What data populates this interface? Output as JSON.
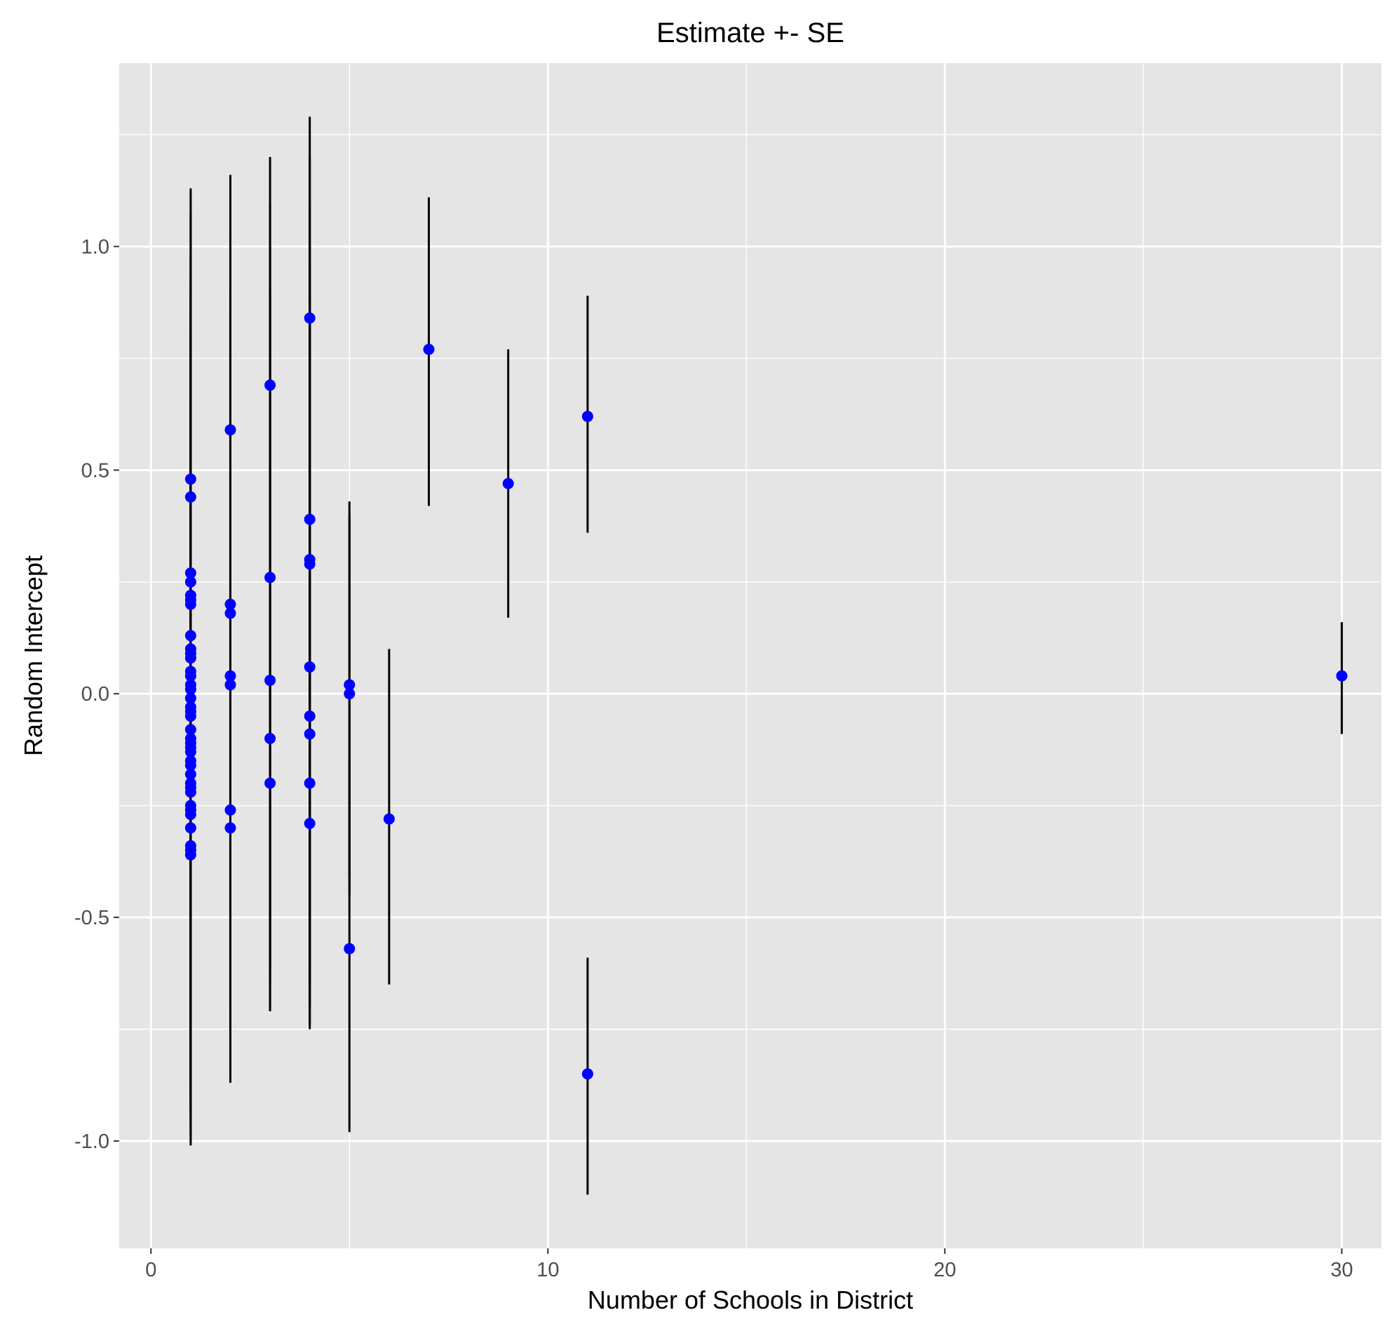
{
  "chart_data": {
    "type": "scatter",
    "title": "Estimate +- SE",
    "xlabel": "Number of Schools in District",
    "ylabel": "Random Intercept",
    "xlim": [
      -0.8,
      31.0
    ],
    "ylim": [
      -1.24,
      1.41
    ],
    "x_ticks": [
      0,
      10,
      20,
      30
    ],
    "x_tick_labels": [
      "0",
      "10",
      "20",
      "30"
    ],
    "x_minor_ticks": [
      5,
      15,
      25
    ],
    "y_ticks": [
      -1.0,
      -0.5,
      0.0,
      0.5,
      1.0
    ],
    "y_tick_labels": [
      "-1.0",
      "-0.5",
      "0.0",
      "0.5",
      "1.0"
    ],
    "y_minor_ticks": [
      -0.75,
      -0.25,
      0.25,
      0.75,
      1.25
    ],
    "grid": true,
    "legend": "none",
    "colors": {
      "panel_background": "#e5e5e5",
      "grid": "#ffffff",
      "point": "#0000ff",
      "errorbar": "#000000",
      "axis_text": "#4d4d4d",
      "title_text": "#000000"
    },
    "series": [
      {
        "points": [
          {
            "x": 1,
            "y": 0.48,
            "lo": -1.01,
            "hi": 1.13
          },
          {
            "x": 1,
            "y": 0.44,
            "lo": -0.93,
            "hi": 1.08
          },
          {
            "x": 1,
            "y": 0.27,
            "lo": -0.85,
            "hi": 0.98
          },
          {
            "x": 1,
            "y": 0.25,
            "lo": -0.8,
            "hi": 0.95
          },
          {
            "x": 1,
            "y": 0.22,
            "lo": -0.78,
            "hi": 0.92
          },
          {
            "x": 1,
            "y": 0.21,
            "lo": -0.76,
            "hi": 0.9
          },
          {
            "x": 1,
            "y": 0.2,
            "lo": -0.74,
            "hi": 0.88
          },
          {
            "x": 1,
            "y": 0.13,
            "lo": -0.7,
            "hi": 0.85
          },
          {
            "x": 1,
            "y": 0.1,
            "lo": -0.68,
            "hi": 0.82
          },
          {
            "x": 1,
            "y": 0.09,
            "lo": -0.66,
            "hi": 0.8
          },
          {
            "x": 1,
            "y": 0.08,
            "lo": -0.64,
            "hi": 0.78
          },
          {
            "x": 1,
            "y": 0.05,
            "lo": -0.62,
            "hi": 0.76
          },
          {
            "x": 1,
            "y": 0.04,
            "lo": -0.6,
            "hi": 0.74
          },
          {
            "x": 1,
            "y": 0.02,
            "lo": -0.58,
            "hi": 0.72
          },
          {
            "x": 1,
            "y": 0.01,
            "lo": -0.57,
            "hi": 0.7
          },
          {
            "x": 1,
            "y": -0.01,
            "lo": -0.58,
            "hi": 0.68
          },
          {
            "x": 1,
            "y": -0.03,
            "lo": -0.6,
            "hi": 0.66
          },
          {
            "x": 1,
            "y": -0.04,
            "lo": -0.62,
            "hi": 0.64
          },
          {
            "x": 1,
            "y": -0.05,
            "lo": -0.64,
            "hi": 0.62
          },
          {
            "x": 1,
            "y": -0.08,
            "lo": -0.66,
            "hi": 0.6
          },
          {
            "x": 1,
            "y": -0.1,
            "lo": -0.68,
            "hi": 0.58
          },
          {
            "x": 1,
            "y": -0.11,
            "lo": -0.7,
            "hi": 0.57
          },
          {
            "x": 1,
            "y": -0.12,
            "lo": -0.72,
            "hi": 0.56
          },
          {
            "x": 1,
            "y": -0.13,
            "lo": -0.74,
            "hi": 0.55
          },
          {
            "x": 1,
            "y": -0.15,
            "lo": -0.76,
            "hi": 0.54
          },
          {
            "x": 1,
            "y": -0.16,
            "lo": -0.78,
            "hi": 0.53
          },
          {
            "x": 1,
            "y": -0.18,
            "lo": -0.8,
            "hi": 0.52
          },
          {
            "x": 1,
            "y": -0.2,
            "lo": -0.82,
            "hi": 0.51
          },
          {
            "x": 1,
            "y": -0.21,
            "lo": -0.84,
            "hi": 0.5
          },
          {
            "x": 1,
            "y": -0.22,
            "lo": -0.86,
            "hi": 0.49
          },
          {
            "x": 1,
            "y": -0.25,
            "lo": -0.88,
            "hi": 0.48
          },
          {
            "x": 1,
            "y": -0.26,
            "lo": -0.9,
            "hi": 0.47
          },
          {
            "x": 1,
            "y": -0.27,
            "lo": -0.92,
            "hi": 0.46
          },
          {
            "x": 1,
            "y": -0.3,
            "lo": -0.94,
            "hi": 0.45
          },
          {
            "x": 1,
            "y": -0.34,
            "lo": -0.96,
            "hi": 0.44
          },
          {
            "x": 1,
            "y": -0.35,
            "lo": -0.98,
            "hi": 0.43
          },
          {
            "x": 1,
            "y": -0.36,
            "lo": -1.0,
            "hi": 0.42
          },
          {
            "x": 2,
            "y": 0.59,
            "lo": -0.87,
            "hi": 1.16
          },
          {
            "x": 2,
            "y": 0.2,
            "lo": -0.8,
            "hi": 1.05
          },
          {
            "x": 2,
            "y": 0.18,
            "lo": -0.75,
            "hi": 1.0
          },
          {
            "x": 2,
            "y": 0.04,
            "lo": -0.7,
            "hi": 0.95
          },
          {
            "x": 2,
            "y": 0.02,
            "lo": -0.68,
            "hi": 0.9
          },
          {
            "x": 2,
            "y": -0.26,
            "lo": -0.85,
            "hi": 0.85
          },
          {
            "x": 2,
            "y": -0.3,
            "lo": -0.86,
            "hi": 0.8
          },
          {
            "x": 3,
            "y": 0.69,
            "lo": -0.71,
            "hi": 1.2
          },
          {
            "x": 3,
            "y": 0.26,
            "lo": -0.65,
            "hi": 1.1
          },
          {
            "x": 3,
            "y": 0.03,
            "lo": -0.6,
            "hi": 1.0
          },
          {
            "x": 3,
            "y": -0.1,
            "lo": -0.62,
            "hi": 0.9
          },
          {
            "x": 3,
            "y": -0.2,
            "lo": -0.7,
            "hi": 0.8
          },
          {
            "x": 4,
            "y": 0.84,
            "lo": -0.75,
            "hi": 1.29
          },
          {
            "x": 4,
            "y": 0.39,
            "lo": -0.7,
            "hi": 1.2
          },
          {
            "x": 4,
            "y": 0.3,
            "lo": -0.65,
            "hi": 1.1
          },
          {
            "x": 4,
            "y": 0.29,
            "lo": -0.6,
            "hi": 1.0
          },
          {
            "x": 4,
            "y": 0.06,
            "lo": -0.55,
            "hi": 0.95
          },
          {
            "x": 4,
            "y": -0.05,
            "lo": -0.6,
            "hi": 0.9
          },
          {
            "x": 4,
            "y": -0.09,
            "lo": -0.65,
            "hi": 0.85
          },
          {
            "x": 4,
            "y": -0.2,
            "lo": -0.7,
            "hi": 0.8
          },
          {
            "x": 4,
            "y": -0.29,
            "lo": -0.74,
            "hi": 0.75
          },
          {
            "x": 5,
            "y": 0.02,
            "lo": -0.41,
            "hi": 0.43
          },
          {
            "x": 5,
            "y": 0.0,
            "lo": -0.45,
            "hi": 0.4
          },
          {
            "x": 5,
            "y": -0.57,
            "lo": -0.98,
            "hi": -0.15
          },
          {
            "x": 6,
            "y": -0.28,
            "lo": -0.65,
            "hi": 0.1
          },
          {
            "x": 7,
            "y": 0.77,
            "lo": 0.42,
            "hi": 1.11
          },
          {
            "x": 9,
            "y": 0.47,
            "lo": 0.17,
            "hi": 0.77
          },
          {
            "x": 11,
            "y": 0.62,
            "lo": 0.36,
            "hi": 0.89
          },
          {
            "x": 11,
            "y": -0.85,
            "lo": -1.12,
            "hi": -0.59
          },
          {
            "x": 30,
            "y": 0.04,
            "lo": -0.09,
            "hi": 0.16
          }
        ]
      }
    ]
  }
}
